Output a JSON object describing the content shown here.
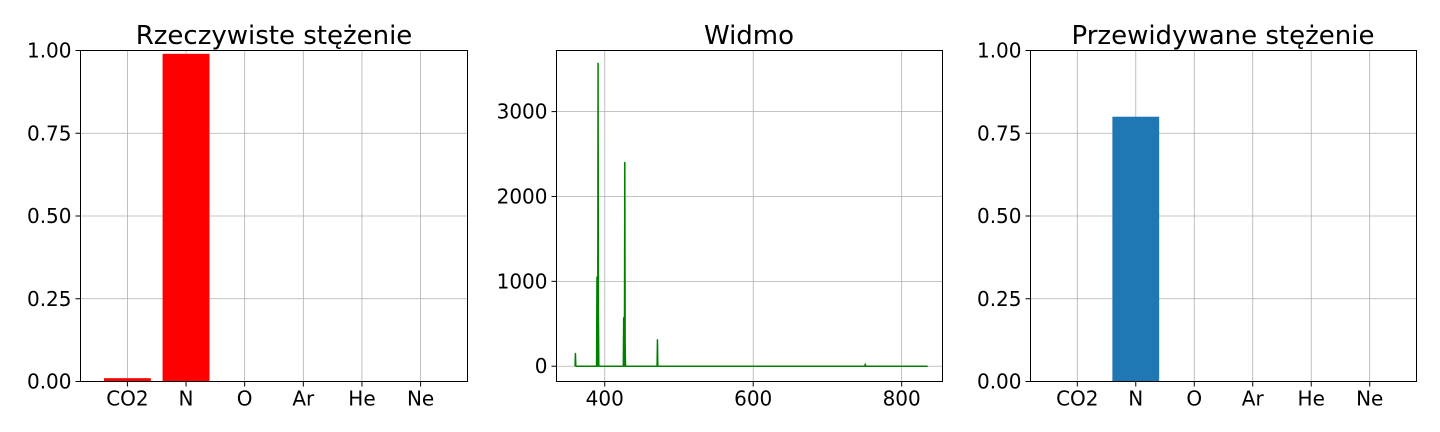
{
  "chart_data": [
    {
      "type": "bar",
      "title": "Rzeczywiste stężenie",
      "categories": [
        "CO2",
        "N",
        "O",
        "Ar",
        "He",
        "Ne"
      ],
      "values": [
        0.01,
        0.99,
        0,
        0,
        0,
        0
      ],
      "ylim": [
        0,
        1
      ],
      "yticks": [
        "0.00",
        "0.25",
        "0.50",
        "0.75",
        "1.00"
      ],
      "color": "#ff0000",
      "grid": true
    },
    {
      "type": "line",
      "title": "Widmo",
      "xlim": [
        335,
        855
      ],
      "ylim": [
        -180,
        3720
      ],
      "xticks": [
        400,
        600,
        800
      ],
      "yticks": [
        0,
        1000,
        2000,
        3000
      ],
      "color": "#008000",
      "grid": true,
      "x": [
        360,
        360.5,
        361,
        361.5,
        362,
        389,
        389.5,
        390,
        390.5,
        391,
        391.5,
        392,
        392.5,
        393,
        425,
        425.5,
        426,
        426.5,
        427,
        427.5,
        428,
        428.5,
        470,
        470.5,
        471,
        471.5,
        472,
        750,
        750.5,
        751,
        751.5,
        752,
        835
      ],
      "y": [
        0,
        150,
        0,
        0,
        0,
        0,
        1050,
        0,
        0,
        3570,
        600,
        0,
        0,
        0,
        0,
        570,
        0,
        0,
        2400,
        250,
        0,
        0,
        0,
        0,
        310,
        0,
        0,
        0,
        0,
        25,
        0,
        0,
        0
      ]
    },
    {
      "type": "bar",
      "title": "Przewidywane stężenie",
      "categories": [
        "CO2",
        "N",
        "O",
        "Ar",
        "He",
        "Ne"
      ],
      "values": [
        0,
        0.8,
        0,
        0,
        0,
        0
      ],
      "ylim": [
        0,
        1
      ],
      "yticks": [
        "0.00",
        "0.25",
        "0.50",
        "0.75",
        "1.00"
      ],
      "color": "#1f77b4",
      "grid": true
    }
  ]
}
